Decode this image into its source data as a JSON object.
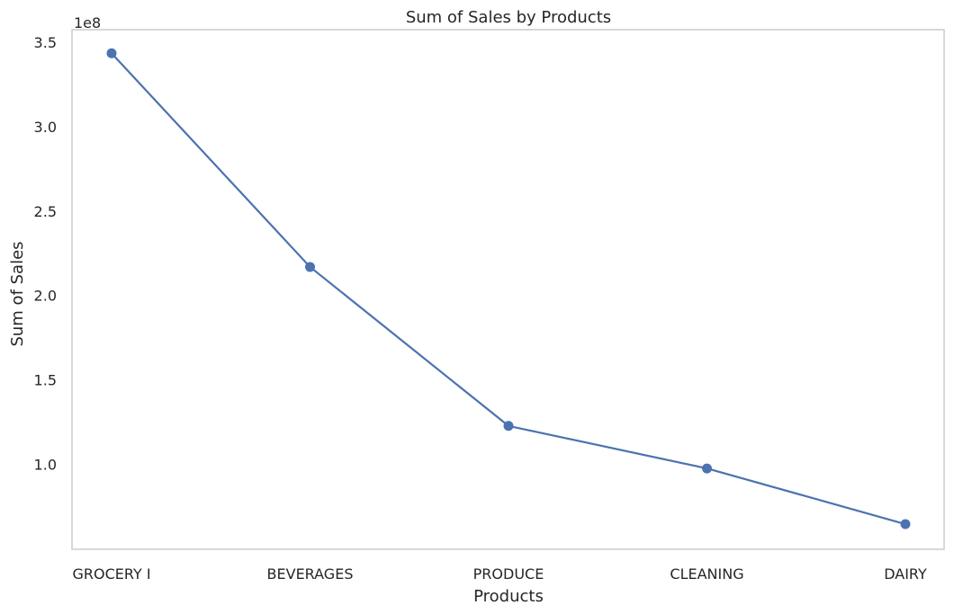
{
  "chart_data": {
    "type": "line",
    "title": "Sum of Sales by Products",
    "xlabel": "Products",
    "ylabel": "Sum of Sales",
    "y_offset_label": "1e8",
    "categories": [
      "GROCERY I",
      "BEVERAGES",
      "PRODUCE",
      "CLEANING",
      "DAIRY"
    ],
    "series": [
      {
        "values": [
          343500000,
          216900000,
          122700000,
          97500000,
          64500000
        ]
      }
    ],
    "y_ticks": [
      1.0,
      1.5,
      2.0,
      2.5,
      3.0,
      3.5
    ],
    "y_tick_labels": [
      "1.0",
      "1.5",
      "2.0",
      "2.5",
      "3.0",
      "3.5"
    ],
    "ylim": [
      49600000,
      357500000
    ],
    "grid": false,
    "line_color": "#4c72b0",
    "frame_color": "#cccccc"
  }
}
